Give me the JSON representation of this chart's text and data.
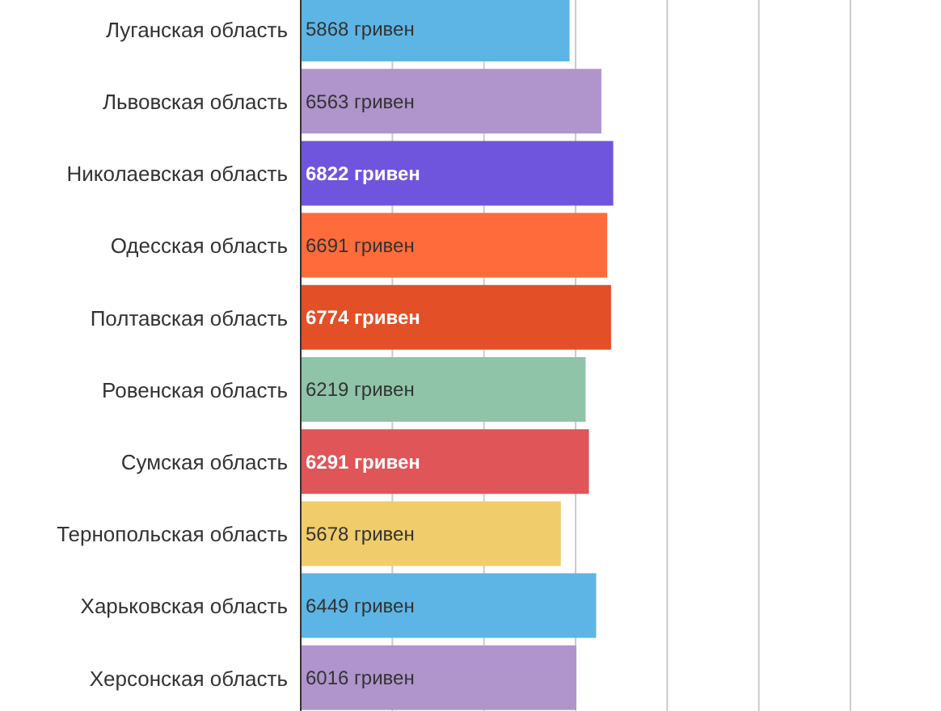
{
  "chart_data": {
    "type": "bar",
    "orientation": "horizontal",
    "categories": [
      "Луганская область",
      "Львовская область",
      "Николаевская область",
      "Одесская область",
      "Полтавская область",
      "Ровенская область",
      "Сумская область",
      "Тернопольская область",
      "Харьковская область",
      "Херсонская область"
    ],
    "values": [
      5868,
      6563,
      6822,
      6691,
      6774,
      6219,
      6291,
      5678,
      6449,
      6016
    ],
    "colors": [
      "#5db5e5",
      "#b094cc",
      "#6f55dd",
      "#ff6b3a",
      "#e34f27",
      "#8fc4a8",
      "#e05558",
      "#f0cc6a",
      "#5db5e5",
      "#b094cc"
    ],
    "value_labels": [
      "5868 гривен",
      "6563 гривен",
      "6822 гривен",
      "6691 гривен",
      "6774 гривен",
      "6219 гривен",
      "6291 гривен",
      "5678 гривен",
      "6449 гривен",
      "6016 гривен"
    ],
    "xlim": [
      0,
      12000
    ],
    "xticks": [
      {
        "value": 2000,
        "label": null
      },
      {
        "value": 4000,
        "label": null
      },
      {
        "value": 6000,
        "label": null
      },
      {
        "value": 8000,
        "label": null
      },
      {
        "value": 10000,
        "label": null
      },
      {
        "value": 12000,
        "label": null
      }
    ],
    "grid": "x",
    "tick_labels": "y"
  }
}
